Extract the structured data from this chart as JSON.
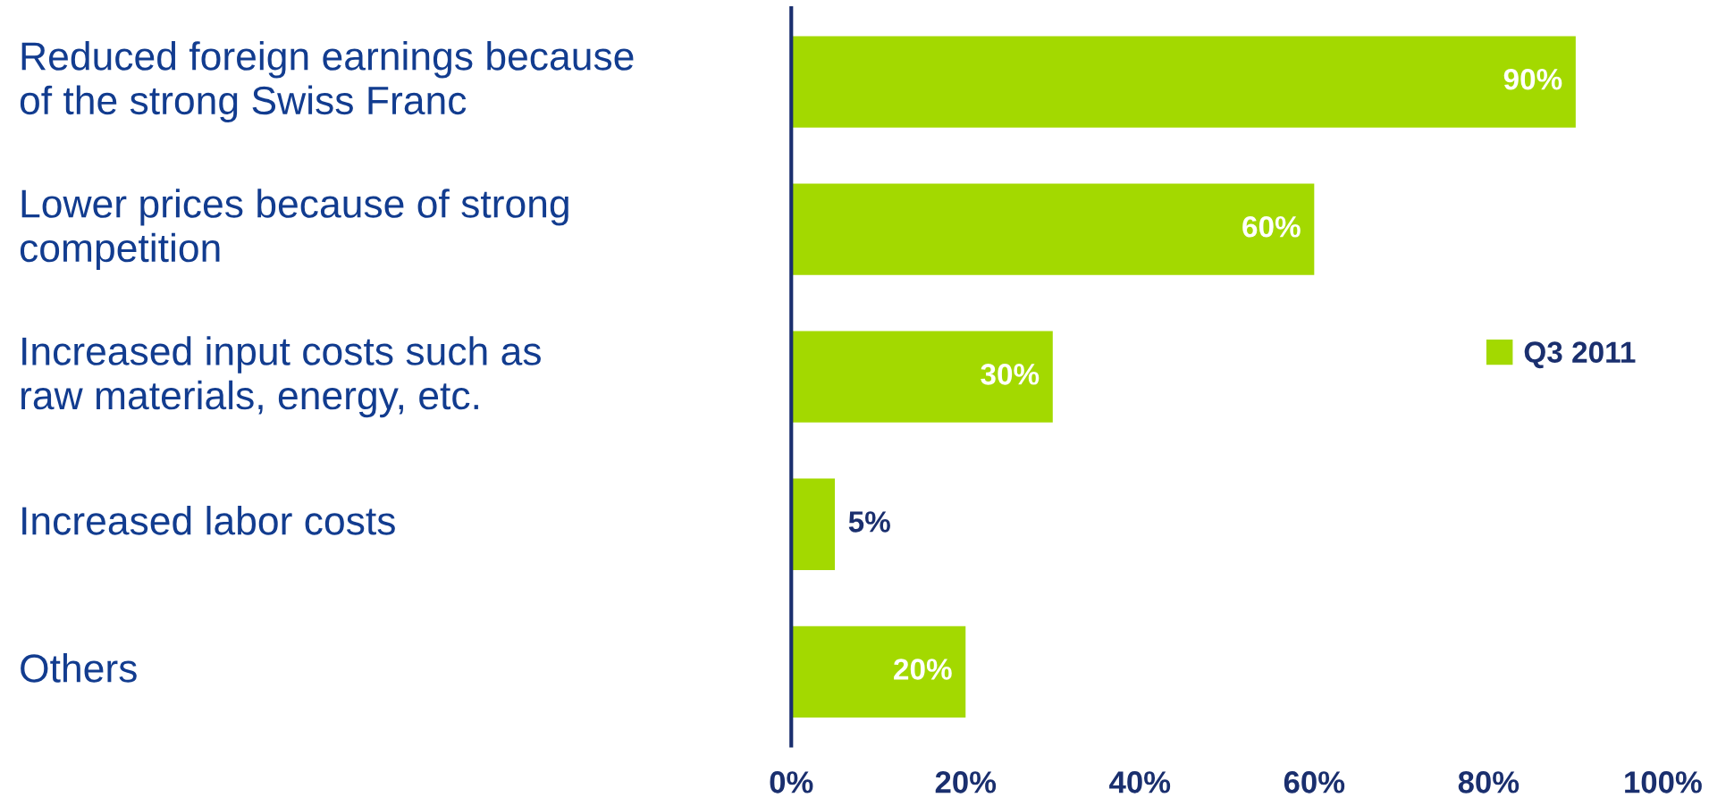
{
  "chart_data": {
    "type": "bar",
    "orientation": "horizontal",
    "categories": [
      "Reduced foreign earnings because\nof the strong Swiss Franc",
      "Lower prices because of strong\ncompetition",
      "Increased input costs such as\nraw materials, energy, etc.",
      "Increased labor costs",
      "Others"
    ],
    "series": [
      {
        "name": "Q3 2011",
        "color": "#a3d900",
        "values": [
          90,
          60,
          30,
          5,
          20
        ]
      }
    ],
    "value_labels": [
      "90%",
      "60%",
      "30%",
      "5%",
      "20%"
    ],
    "xlim": [
      0,
      100
    ],
    "xticks": [
      {
        "value": 0,
        "label": "0%"
      },
      {
        "value": 20,
        "label": "20%"
      },
      {
        "value": 40,
        "label": "40%"
      },
      {
        "value": 60,
        "label": "60%"
      },
      {
        "value": 80,
        "label": "80%"
      },
      {
        "value": 100,
        "label": "100%"
      }
    ],
    "grid": false,
    "legend": "right"
  }
}
